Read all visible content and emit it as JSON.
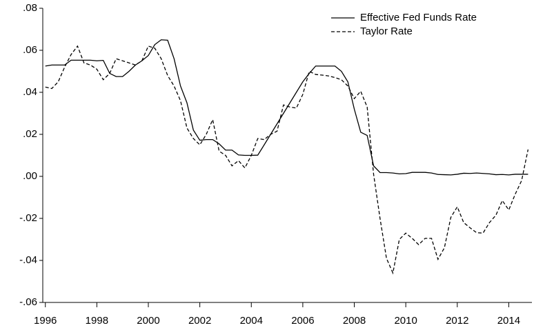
{
  "chart_data": {
    "type": "line",
    "xlim": [
      1995.9,
      2014.9
    ],
    "xticks": [
      1996,
      1998,
      2000,
      2002,
      2004,
      2006,
      2008,
      2010,
      2012,
      2014
    ],
    "ylim": [
      -0.06,
      0.08
    ],
    "yticks": [
      {
        "value": -0.06,
        "label": "-.06"
      },
      {
        "value": -0.04,
        "label": "-.04"
      },
      {
        "value": -0.02,
        "label": "-.02"
      },
      {
        "value": 0,
        "label": ".00"
      },
      {
        "value": 0.02,
        "label": ".02"
      },
      {
        "value": 0.04,
        "label": ".04"
      },
      {
        "value": 0.06,
        "label": ".06"
      },
      {
        "value": 0.08,
        "label": ".08"
      }
    ],
    "legend": "upper right",
    "x": [
      1996,
      1996.25,
      1996.5,
      1996.75,
      1997,
      1997.25,
      1997.5,
      1997.75,
      1998,
      1998.25,
      1998.5,
      1998.75,
      1999,
      1999.25,
      1999.5,
      1999.75,
      2000,
      2000.25,
      2000.5,
      2000.75,
      2001,
      2001.25,
      2001.5,
      2001.75,
      2002,
      2002.25,
      2002.5,
      2002.75,
      2003,
      2003.25,
      2003.5,
      2003.75,
      2004,
      2004.25,
      2004.5,
      2004.75,
      2005,
      2005.25,
      2005.5,
      2005.75,
      2006,
      2006.25,
      2006.5,
      2006.75,
      2007,
      2007.25,
      2007.5,
      2007.75,
      2008,
      2008.25,
      2008.5,
      2008.75,
      2009,
      2009.25,
      2009.5,
      2009.75,
      2010,
      2010.25,
      2010.5,
      2010.75,
      2011,
      2011.25,
      2011.5,
      2011.75,
      2012,
      2012.25,
      2012.5,
      2012.75,
      2013,
      2013.25,
      2013.5,
      2013.75,
      2014,
      2014.25,
      2014.5,
      2014.75
    ],
    "series": [
      {
        "name": "Effective Fed Funds Rate",
        "color": "#000000",
        "linestyle": "solid",
        "values": [
          0.0525,
          0.053,
          0.053,
          0.053,
          0.0553,
          0.0553,
          0.0553,
          0.0553,
          0.055,
          0.0552,
          0.049,
          0.0475,
          0.0475,
          0.05,
          0.053,
          0.055,
          0.0575,
          0.0627,
          0.065,
          0.0648,
          0.056,
          0.043,
          0.035,
          0.022,
          0.0172,
          0.0175,
          0.0175,
          0.0155,
          0.0125,
          0.0125,
          0.0102,
          0.01,
          0.01,
          0.0101,
          0.015,
          0.02,
          0.025,
          0.03,
          0.035,
          0.04,
          0.045,
          0.049,
          0.0525,
          0.0525,
          0.0525,
          0.0525,
          0.05,
          0.045,
          0.032,
          0.021,
          0.0195,
          0.005,
          0.0018,
          0.0018,
          0.0016,
          0.0012,
          0.0013,
          0.0019,
          0.0019,
          0.0019,
          0.0016,
          0.0009,
          0.0008,
          0.0007,
          0.001,
          0.0015,
          0.0014,
          0.0016,
          0.0014,
          0.0012,
          0.0008,
          0.0009,
          0.0007,
          0.001,
          0.001,
          0.001
        ]
      },
      {
        "name": "Taylor Rate",
        "color": "#000000",
        "linestyle": "dashed",
        "values": [
          0.0425,
          0.0418,
          0.045,
          0.052,
          0.058,
          0.062,
          0.054,
          0.053,
          0.051,
          0.046,
          0.049,
          0.056,
          0.055,
          0.054,
          0.053,
          0.055,
          0.062,
          0.061,
          0.056,
          0.048,
          0.043,
          0.036,
          0.023,
          0.018,
          0.015,
          0.02,
          0.027,
          0.012,
          0.01,
          0.005,
          0.0075,
          0.004,
          0.01,
          0.018,
          0.0175,
          0.02,
          0.0215,
          0.034,
          0.033,
          0.0325,
          0.039,
          0.05,
          0.0485,
          0.0482,
          0.0478,
          0.047,
          0.046,
          0.043,
          0.037,
          0.0405,
          0.033,
          0.001,
          -0.02,
          -0.039,
          -0.046,
          -0.03,
          -0.027,
          -0.0295,
          -0.0325,
          -0.0295,
          -0.0295,
          -0.0395,
          -0.034,
          -0.0195,
          -0.0145,
          -0.022,
          -0.0245,
          -0.0268,
          -0.027,
          -0.022,
          -0.0185,
          -0.0115,
          -0.016,
          -0.0085,
          -0.002,
          0.0128
        ]
      }
    ]
  }
}
